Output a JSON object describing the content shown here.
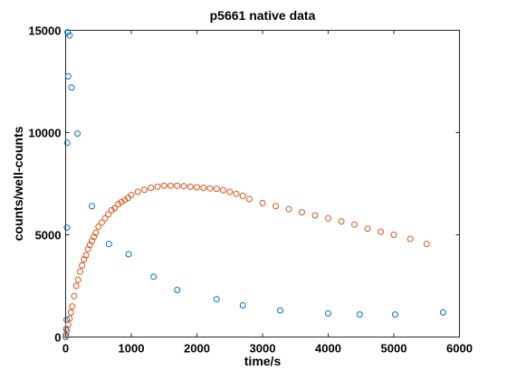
{
  "chart_data": {
    "type": "scatter",
    "title": "p5661 native data",
    "xlabel": "time/s",
    "ylabel": "counts/well-counts",
    "xlim": [
      0,
      6000
    ],
    "ylim": [
      0,
      15000
    ],
    "x_ticks": [
      "0",
      "1000",
      "2000",
      "3000",
      "4000",
      "5000",
      "6000"
    ],
    "y_ticks": [
      "0",
      "5000",
      "10000",
      "15000"
    ],
    "x_tick_values": [
      0,
      1000,
      2000,
      3000,
      4000,
      5000,
      6000
    ],
    "y_tick_values": [
      0,
      5000,
      10000,
      15000
    ],
    "grid": false,
    "series": [
      {
        "color": "#0072BD",
        "x": [
          0,
          5,
          10,
          15,
          20,
          25,
          30,
          40,
          60,
          90,
          180,
          400,
          660,
          960,
          1340,
          1700,
          2300,
          2700,
          3270,
          4000,
          4480,
          5020,
          5750
        ],
        "y": [
          0,
          100,
          400,
          850,
          5350,
          9500,
          14900,
          12750,
          14750,
          12200,
          9950,
          6400,
          4550,
          4050,
          2950,
          2300,
          1850,
          1550,
          1300,
          1150,
          1100,
          1100,
          1200
        ]
      },
      {
        "color": "#D95319",
        "x": [
          0,
          20,
          40,
          60,
          80,
          100,
          130,
          160,
          190,
          220,
          250,
          280,
          310,
          340,
          370,
          400,
          430,
          460,
          500,
          550,
          600,
          650,
          700,
          750,
          800,
          850,
          900,
          950,
          1000,
          1100,
          1200,
          1300,
          1400,
          1500,
          1600,
          1700,
          1800,
          1900,
          2000,
          2100,
          2200,
          2300,
          2400,
          2500,
          2600,
          2700,
          2800,
          3000,
          3200,
          3400,
          3600,
          3800,
          4000,
          4200,
          4400,
          4600,
          4800,
          5000,
          5250,
          5500
        ],
        "y": [
          0,
          300,
          600,
          900,
          1200,
          1500,
          2000,
          2500,
          2800,
          3200,
          3500,
          3800,
          4000,
          4300,
          4500,
          4700,
          4900,
          5100,
          5400,
          5600,
          5800,
          6000,
          6200,
          6300,
          6500,
          6600,
          6700,
          6800,
          6950,
          7100,
          7200,
          7300,
          7350,
          7400,
          7400,
          7400,
          7380,
          7350,
          7330,
          7300,
          7270,
          7250,
          7180,
          7100,
          7000,
          6900,
          6750,
          6550,
          6400,
          6250,
          6100,
          5950,
          5800,
          5650,
          5500,
          5300,
          5150,
          5000,
          4800,
          4550
        ]
      }
    ]
  }
}
